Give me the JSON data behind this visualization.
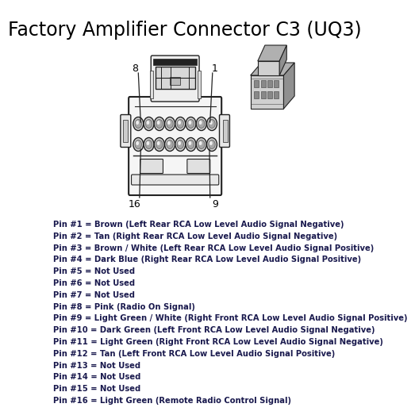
{
  "title": "Factory Amplifier Connector C3 (UQ3)",
  "title_fontsize": 17,
  "title_color": "#000000",
  "bg_color": "#ffffff",
  "pin_labels": [
    "Pin #1 = Brown (Left Rear RCA Low Level Audio Signal Negative)",
    "Pin #2 = Tan (Right Rear RCA Low Level Audio Signal Negative)",
    "Pin #3 = Brown / White (Left Rear RCA Low Level Audio Signal Positive)",
    "Pin #4 = Dark Blue (Right Rear RCA Low Level Audio Signal Positive)",
    "Pin #5 = Not Used",
    "Pin #6 = Not Used",
    "Pin #7 = Not Used",
    "Pin #8 = Pink (Radio On Signal)",
    "Pin #9 = Light Green / White (Right Front RCA Low Level Audio Signal Positive)",
    "Pin #10 = Dark Green (Left Front RCA Low Level Audio Signal Negative)",
    "Pin #11 = Light Green (Right Front RCA Low Level Audio Signal Negative)",
    "Pin #12 = Tan (Left Front RCA Low Level Audio Signal Positive)",
    "Pin #13 = Not Used",
    "Pin #14 = Not Used",
    "Pin #15 = Not Used",
    "Pin #16 = Light Green (Remote Radio Control Signal)"
  ],
  "text_color": "#1a1a4e",
  "text_fontsize": 7.2,
  "label_fontsize": 9,
  "label_color": "#000000",
  "line_color": "#444444",
  "connector_color": "#ffffff",
  "connector_edge": "#222222"
}
